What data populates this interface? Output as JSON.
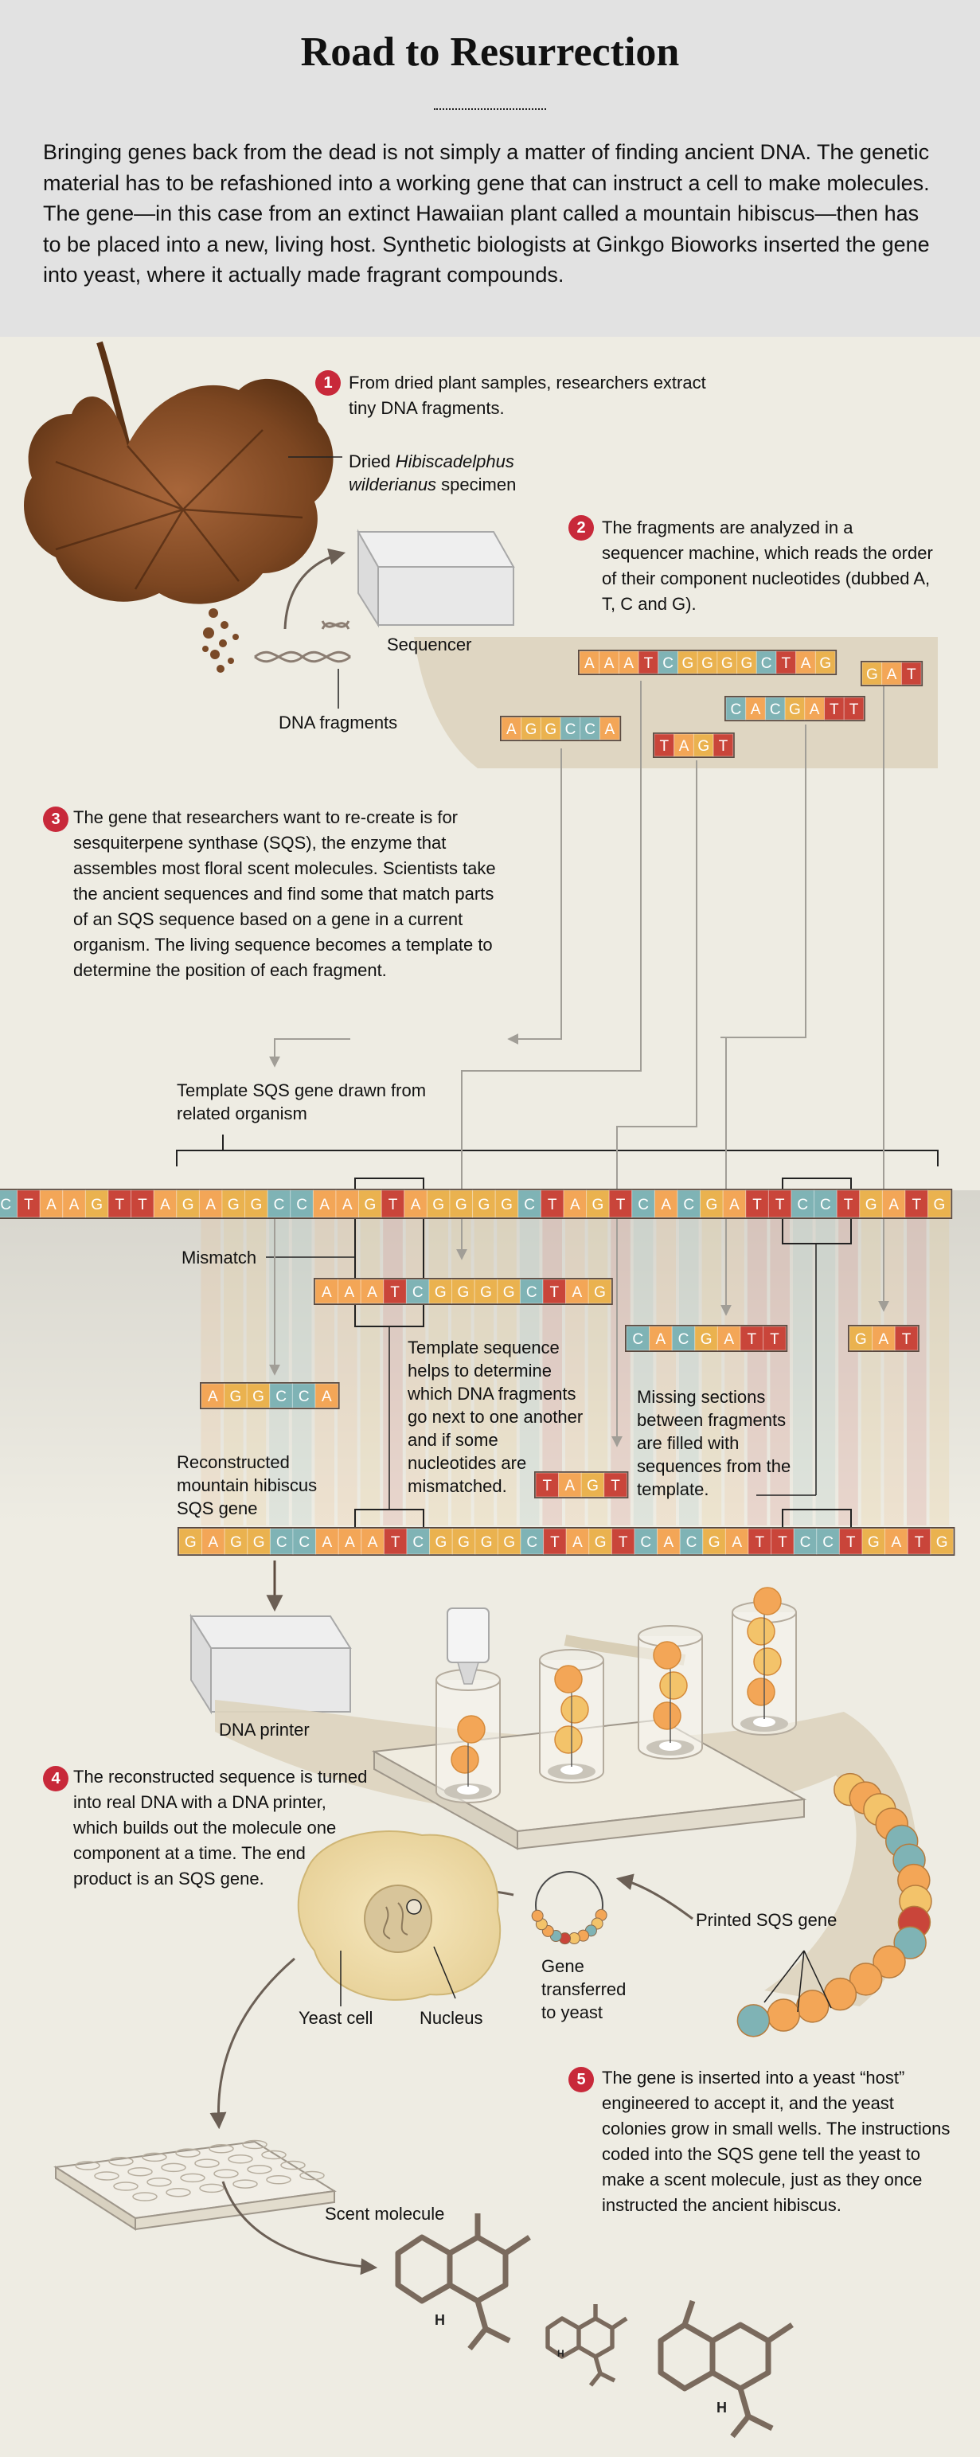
{
  "title": "Road to Resurrection",
  "intro": "Bringing genes back from the dead is not simply a matter of finding ancient DNA. The genetic material has to be refashioned into a working gene that can instruct a cell to make molecules. The gene—in this case from an extinct Hawaiian plant called a mountain hibiscus—then has to be placed into a new, living host. Synthetic biologists at Ginkgo Bioworks inserted the gene into yeast, where it actually made fragrant compounds.",
  "steps": [
    {
      "number": "1",
      "text": "From dried plant samples, researchers extract tiny DNA fragments."
    },
    {
      "number": "2",
      "text": "The fragments are analyzed in a sequencer machine, which reads the order of their component nucleotides (dubbed A, T, C and G)."
    },
    {
      "number": "3",
      "text": "The gene that researchers want to re-create is for sesquiterpene synthase (SQS), the enzyme that assembles most floral scent molecules. Scientists take the ancient sequences and find some that match parts of an SQS sequence based on a gene in a current organism. The living sequence becomes a template to determine the position of each fragment."
    },
    {
      "number": "4",
      "text": "The reconstructed sequence is turned into real DNA with a DNA printer, which builds out the molecule one component at a time. The end product is an SQS gene."
    },
    {
      "number": "5",
      "text": "The gene is inserted into a yeast “host” engineered to accept it, and the yeast colonies grow in small wells. The instructions coded into the SQS gene tell the yeast to make a scent molecule, just as they once instructed the ancient hibiscus."
    }
  ],
  "labels": {
    "specimen_pre": "Dried ",
    "specimen_genus": "Hibiscadelphus",
    "specimen_species": "wilderianus",
    "specimen_post": " specimen",
    "sequencer": "Sequencer",
    "dna_fragments": "DNA fragments",
    "template_gene": "Template SQS gene drawn from related organism",
    "mismatch": "Mismatch",
    "template_helps": "Template sequence helps to determine which DNA fragments go next to one another and if some nucleotides are mismatched.",
    "missing_sections": "Missing sections between fragments are filled with sequences from the template.",
    "reconstructed": "Reconstructed mountain hibiscus SQS gene",
    "dna_printer": "DNA printer",
    "printed_gene": "Printed SQS gene",
    "gene_transferred": "Gene transferred to yeast",
    "yeast_cell": "Yeast cell",
    "nucleus": "Nucleus",
    "scent_molecule": "Scent molecule",
    "h_atom": "H"
  },
  "sequences": {
    "template": "CTAAGTTAGAGGCCAAGTAGGGGCTAGTCACGATTCCTGATG",
    "reconstructed": "GAGGCCAAATCGGGGCTAGTCACGATTCCTGATG",
    "frag_A": "AAATCGGGGCTAG",
    "frag_B": "CACGATT",
    "frag_C": "AGGCCA",
    "frag_D": "TAGT",
    "frag_E": "GAT"
  },
  "colors": {
    "A": "#f3a657",
    "G": "#eab24f",
    "C": "#7fb3b5",
    "T": "#c9453a",
    "badge": "#c8293a",
    "header_bg": "#e2e2e2",
    "page_bg": "#eeece3"
  }
}
